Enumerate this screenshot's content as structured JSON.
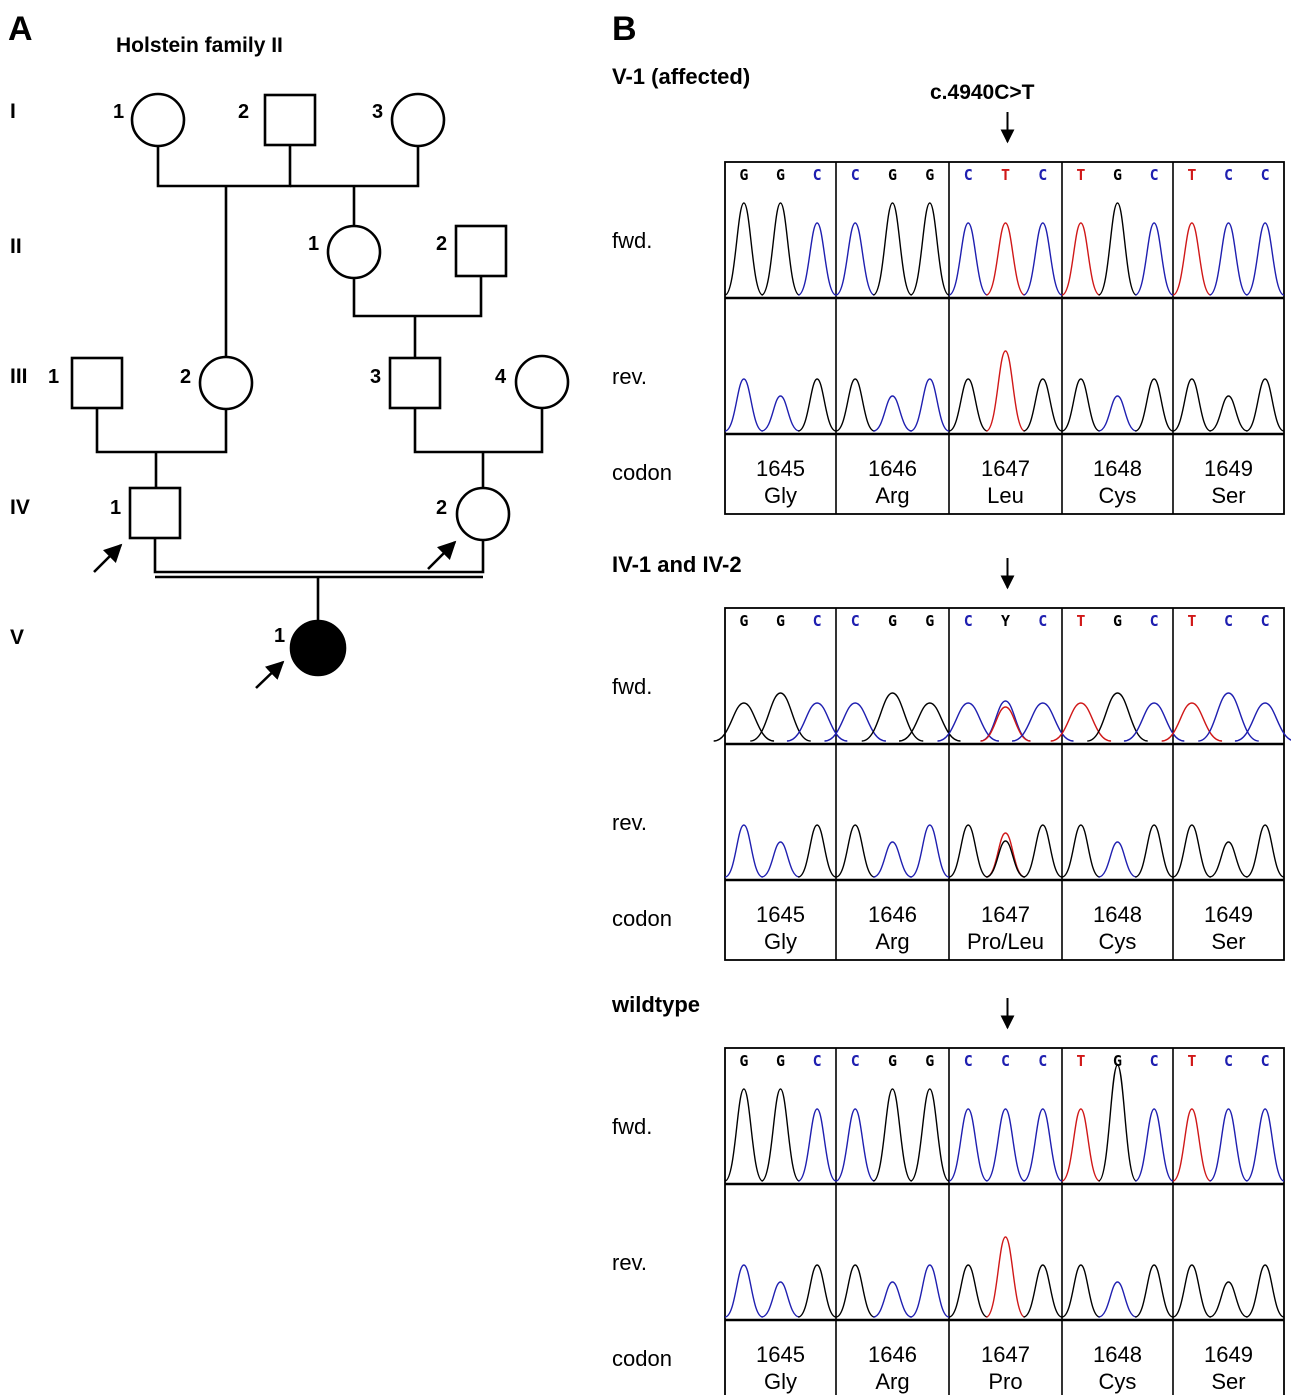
{
  "panel_a": {
    "letter": "A",
    "title": "Holstein family II",
    "generations": [
      "I",
      "II",
      "III",
      "IV",
      "V"
    ],
    "individuals": [
      {
        "generation": "I",
        "number": "1",
        "sex": "female",
        "affected": false
      },
      {
        "generation": "I",
        "number": "2",
        "sex": "male",
        "affected": false
      },
      {
        "generation": "I",
        "number": "3",
        "sex": "female",
        "affected": false
      },
      {
        "generation": "II",
        "number": "1",
        "sex": "female",
        "affected": false
      },
      {
        "generation": "II",
        "number": "2",
        "sex": "male",
        "affected": false
      },
      {
        "generation": "III",
        "number": "1",
        "sex": "male",
        "affected": false
      },
      {
        "generation": "III",
        "number": "2",
        "sex": "female",
        "affected": false
      },
      {
        "generation": "III",
        "number": "3",
        "sex": "male",
        "affected": false
      },
      {
        "generation": "III",
        "number": "4",
        "sex": "female",
        "affected": false
      },
      {
        "generation": "IV",
        "number": "1",
        "sex": "male",
        "affected": false
      },
      {
        "generation": "IV",
        "number": "2",
        "sex": "female",
        "affected": false
      },
      {
        "generation": "V",
        "number": "1",
        "sex": "female",
        "affected": true
      }
    ]
  },
  "panel_b": {
    "letter": "B",
    "mutation_label": "c.4940C>T",
    "row_labels": {
      "fwd": "fwd.",
      "rev": "rev.",
      "codon": "codon"
    },
    "colors": {
      "G": "#000000",
      "C": "#1f1fb0",
      "T": "#d01818",
      "Y": "#000000"
    },
    "samples": [
      {
        "title": "V-1 (affected)",
        "bases": [
          [
            "G",
            "G",
            "C"
          ],
          [
            "C",
            "G",
            "G"
          ],
          [
            "C",
            "T",
            "C"
          ],
          [
            "T",
            "G",
            "C"
          ],
          [
            "T",
            "C",
            "C"
          ]
        ],
        "codons": [
          {
            "number": "1645",
            "aa": "Gly"
          },
          {
            "number": "1646",
            "aa": "Arg"
          },
          {
            "number": "1647",
            "aa": "Leu"
          },
          {
            "number": "1648",
            "aa": "Cys"
          },
          {
            "number": "1649",
            "aa": "Ser"
          }
        ]
      },
      {
        "title": "IV-1 and IV-2",
        "bases": [
          [
            "G",
            "G",
            "C"
          ],
          [
            "C",
            "G",
            "G"
          ],
          [
            "C",
            "Y",
            "C"
          ],
          [
            "T",
            "G",
            "C"
          ],
          [
            "T",
            "C",
            "C"
          ]
        ],
        "codons": [
          {
            "number": "1645",
            "aa": "Gly"
          },
          {
            "number": "1646",
            "aa": "Arg"
          },
          {
            "number": "1647",
            "aa": "Pro/Leu"
          },
          {
            "number": "1648",
            "aa": "Cys"
          },
          {
            "number": "1649",
            "aa": "Ser"
          }
        ]
      },
      {
        "title": "wildtype",
        "bases": [
          [
            "G",
            "G",
            "C"
          ],
          [
            "C",
            "G",
            "G"
          ],
          [
            "C",
            "C",
            "C"
          ],
          [
            "T",
            "G",
            "C"
          ],
          [
            "T",
            "C",
            "C"
          ]
        ],
        "codons": [
          {
            "number": "1645",
            "aa": "Gly"
          },
          {
            "number": "1646",
            "aa": "Arg"
          },
          {
            "number": "1647",
            "aa": "Pro"
          },
          {
            "number": "1648",
            "aa": "Cys"
          },
          {
            "number": "1649",
            "aa": "Ser"
          }
        ]
      }
    ]
  }
}
